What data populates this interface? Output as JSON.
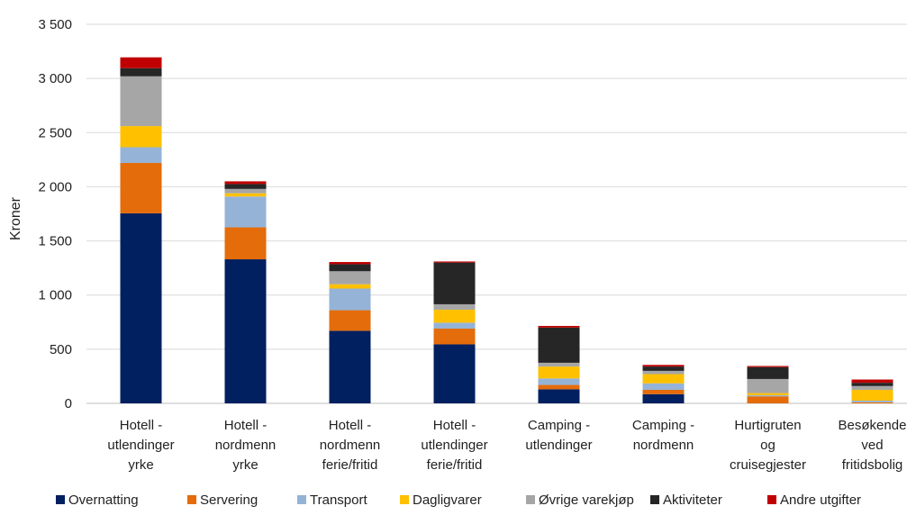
{
  "chart_data": {
    "type": "bar",
    "stacked": true,
    "ylabel": "Kroner",
    "xlabel": "",
    "title": "",
    "ylim": [
      0,
      3500
    ],
    "yticks": [
      0,
      500,
      1000,
      1500,
      2000,
      2500,
      3000,
      3500
    ],
    "ytick_labels": [
      "0",
      "500",
      "1 000",
      "1 500",
      "2 000",
      "2 500",
      "3 000",
      "3 500"
    ],
    "grid": true,
    "legend_position": "bottom",
    "categories": [
      [
        "Hotell -",
        "utlendinger",
        "yrke"
      ],
      [
        "Hotell -",
        "nordmenn",
        "yrke"
      ],
      [
        "Hotell -",
        "nordmenn",
        "ferie/fritid"
      ],
      [
        "Hotell -",
        "utlendinger",
        "ferie/fritid"
      ],
      [
        "Camping -",
        "utlendinger"
      ],
      [
        "Camping -",
        "nordmenn"
      ],
      [
        "Hurtigruten",
        "og",
        "cruisegjester"
      ],
      [
        "Besøkende",
        "ved",
        "fritidsbolig"
      ]
    ],
    "series": [
      {
        "name": "Overnatting",
        "color": "#002060",
        "values": [
          1755,
          1330,
          670,
          545,
          130,
          85,
          0,
          0
        ]
      },
      {
        "name": "Servering",
        "color": "#E46C0A",
        "values": [
          465,
          295,
          190,
          145,
          40,
          40,
          65,
          10
        ]
      },
      {
        "name": "Transport",
        "color": "#95B3D7",
        "values": [
          145,
          285,
          200,
          55,
          60,
          60,
          10,
          15
        ]
      },
      {
        "name": "Dagligvarer",
        "color": "#FFC000",
        "values": [
          195,
          30,
          40,
          120,
          110,
          85,
          20,
          100
        ]
      },
      {
        "name": "Øvrige varekjøp",
        "color": "#A6A6A6",
        "values": [
          460,
          40,
          120,
          50,
          35,
          30,
          130,
          35
        ]
      },
      {
        "name": "Aktiviteter",
        "color": "#262626",
        "values": [
          75,
          45,
          65,
          385,
          325,
          40,
          110,
          30
        ]
      },
      {
        "name": "Andre utgifter",
        "color": "#C00000",
        "values": [
          100,
          25,
          20,
          10,
          15,
          15,
          10,
          30
        ]
      }
    ]
  }
}
